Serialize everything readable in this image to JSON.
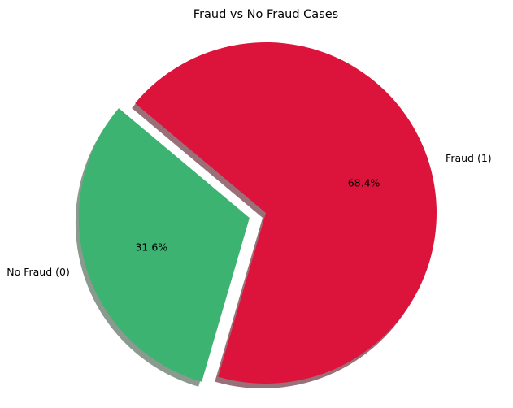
{
  "chart_data": {
    "type": "pie",
    "title": "Fraud vs No Fraud Cases",
    "slices": [
      {
        "label": "No Fraud (0)",
        "value": 31.6,
        "pct_label": "31.6%",
        "color": "#3CB371",
        "shadow_color": "#8A9A8E",
        "exploded": true
      },
      {
        "label": "Fraud (1)",
        "value": 68.4,
        "pct_label": "68.4%",
        "color": "#DC143C",
        "shadow_color": "#9A7078",
        "exploded": false
      }
    ],
    "start_angle": 140,
    "shadow": true,
    "legend": "none"
  }
}
